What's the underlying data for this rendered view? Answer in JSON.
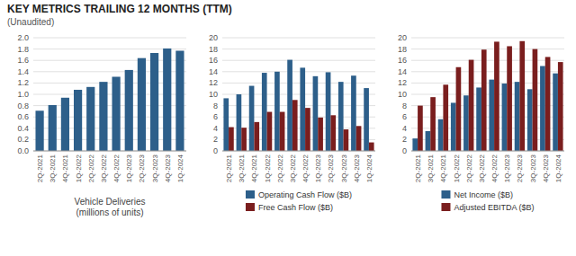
{
  "title": "KEY METRICS TRAILING 12 MONTHS (TTM)",
  "subtitle": "(Unaudited)",
  "chart_data": [
    {
      "type": "bar",
      "categories": [
        "2Q-2021",
        "3Q-2021",
        "4Q-2021",
        "1Q-2022",
        "2Q-2022",
        "3Q-2022",
        "4Q-2022",
        "1Q-2023",
        "2Q-2023",
        "3Q-2023",
        "4Q-2023",
        "1Q-2024"
      ],
      "values": [
        0.71,
        0.81,
        0.94,
        1.08,
        1.13,
        1.22,
        1.31,
        1.43,
        1.64,
        1.73,
        1.81,
        1.77
      ],
      "color": "#2d5f8a",
      "x_label": "Vehicle Deliveries\n(millions of units)",
      "ylim": [
        0,
        2.0
      ],
      "yticks": [
        {
          "value": 0,
          "label": "0.0"
        },
        0.2,
        0.4,
        0.6,
        0.8,
        {
          "value": 1,
          "label": "1.0"
        },
        1.2,
        1.4,
        1.6,
        1.8,
        {
          "value": 2,
          "label": "2.0"
        }
      ],
      "grid": true
    },
    {
      "type": "bar",
      "categories": [
        "2Q-2021",
        "3Q-2021",
        "4Q-2021",
        "1Q-2022",
        "2Q-2022",
        "3Q-2022",
        "4Q-2022",
        "1Q-2023",
        "2Q-2023",
        "3Q-2023",
        "4Q-2023",
        "1Q-2024"
      ],
      "series": [
        {
          "name": "Operating Cash Flow ($B)",
          "color": "#2d5f8a",
          "values": [
            9.3,
            10.0,
            11.5,
            13.8,
            14.0,
            16.1,
            14.7,
            13.2,
            13.9,
            12.2,
            13.3,
            11.1
          ]
        },
        {
          "name": "Free Cash Flow ($B)",
          "color": "#7a1e1e",
          "values": [
            4.2,
            4.1,
            5.1,
            6.9,
            6.9,
            9.0,
            7.6,
            5.9,
            6.3,
            3.8,
            4.4,
            1.5
          ]
        }
      ],
      "ylim": [
        0,
        20
      ],
      "yticks": [
        0,
        2,
        4,
        6,
        8,
        10,
        12,
        14,
        16,
        18,
        20
      ],
      "grid": true,
      "legend": "bottom"
    },
    {
      "type": "bar",
      "categories": [
        "2Q-2021",
        "3Q-2021",
        "4Q-2021",
        "1Q-2022",
        "2Q-2022",
        "3Q-2022",
        "4Q-2022",
        "1Q-2023",
        "2Q-2023",
        "3Q-2023",
        "4Q-2023",
        "1Q-2024"
      ],
      "series": [
        {
          "name": "Net Income ($B)",
          "color": "#2d5f8a",
          "values": [
            2.2,
            3.5,
            5.6,
            8.5,
            9.8,
            11.2,
            12.6,
            11.9,
            12.2,
            10.9,
            15.0,
            13.7
          ]
        },
        {
          "name": "Adjusted EBITDA ($B)",
          "color": "#7a1e1e",
          "values": [
            8.0,
            9.5,
            11.7,
            14.8,
            16.1,
            17.9,
            19.3,
            18.5,
            19.4,
            18.0,
            16.6,
            15.7
          ]
        }
      ],
      "ylim": [
        0,
        20
      ],
      "yticks": [
        0,
        2,
        4,
        6,
        8,
        10,
        12,
        14,
        16,
        18,
        20
      ],
      "grid": true,
      "legend": "bottom"
    }
  ]
}
